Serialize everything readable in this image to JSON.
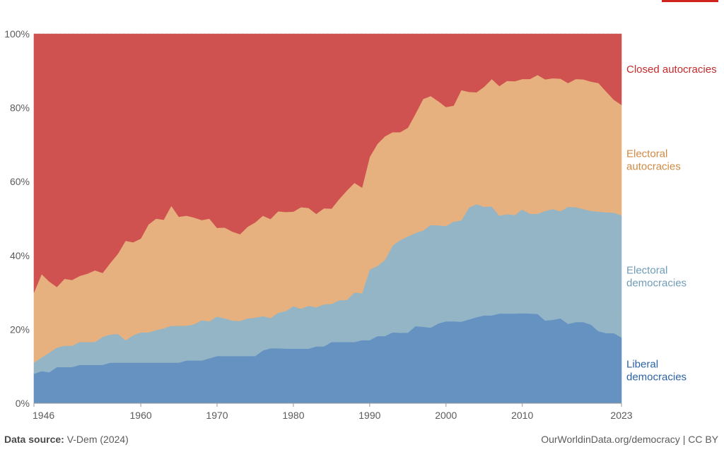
{
  "chart_data": {
    "type": "area",
    "stacked": true,
    "normalized": true,
    "x": [
      1946,
      1947,
      1948,
      1949,
      1950,
      1951,
      1952,
      1953,
      1954,
      1955,
      1956,
      1957,
      1958,
      1959,
      1960,
      1961,
      1962,
      1963,
      1964,
      1965,
      1966,
      1967,
      1968,
      1969,
      1970,
      1971,
      1972,
      1973,
      1974,
      1975,
      1976,
      1977,
      1978,
      1979,
      1980,
      1981,
      1982,
      1983,
      1984,
      1985,
      1986,
      1987,
      1988,
      1989,
      1990,
      1991,
      1992,
      1993,
      1994,
      1995,
      1996,
      1997,
      1998,
      1999,
      2000,
      2001,
      2002,
      2003,
      2004,
      2005,
      2006,
      2007,
      2008,
      2009,
      2010,
      2011,
      2012,
      2013,
      2014,
      2015,
      2016,
      2017,
      2018,
      2019,
      2020,
      2021,
      2022,
      2023
    ],
    "series": [
      {
        "name": "Liberal democracies",
        "color": "#6592c1",
        "values": [
          8,
          8.7,
          8.4,
          9.8,
          9.8,
          9.8,
          10.4,
          10.4,
          10.4,
          10.4,
          11,
          11,
          11,
          11,
          11,
          11,
          11,
          11,
          11,
          11,
          11.6,
          11.6,
          11.6,
          12.2,
          12.8,
          12.8,
          12.8,
          12.8,
          12.8,
          12.8,
          14.3,
          14.9,
          14.9,
          14.8,
          14.8,
          14.8,
          14.8,
          15.4,
          15.4,
          16.6,
          16.6,
          16.6,
          16.6,
          17.1,
          17.1,
          18.2,
          18.2,
          19.2,
          19.1,
          19.1,
          20.9,
          20.7,
          20.5,
          21.6,
          22.2,
          22.2,
          22.1,
          22.7,
          23.3,
          23.8,
          23.8,
          24.3,
          24.3,
          24.3,
          24.4,
          24.3,
          24.2,
          22.4,
          22.6,
          23,
          21.5,
          22,
          22,
          21.3,
          19.5,
          19,
          19,
          17.8
        ]
      },
      {
        "name": "Electoral democracies",
        "color": "#93b5c6",
        "values": [
          3,
          3.7,
          5.3,
          5.3,
          5.8,
          5.8,
          6.2,
          6.2,
          6.2,
          7.6,
          7.6,
          7.8,
          6.1,
          7.4,
          8.2,
          8.2,
          8.8,
          9.3,
          10,
          10,
          9.4,
          9.8,
          10.9,
          10,
          10.7,
          10.2,
          9.6,
          9.5,
          10.2,
          10.4,
          9.3,
          8.2,
          9.6,
          10.2,
          11.5,
          10.8,
          11.6,
          10.6,
          11.4,
          10.3,
          11.3,
          11.4,
          13.4,
          12.7,
          19.1,
          19,
          20.6,
          23.5,
          25.1,
          26.1,
          25.2,
          26.1,
          27.8,
          26.6,
          25.8,
          27,
          27.4,
          30.3,
          30.6,
          29.4,
          29.5,
          26.5,
          26.9,
          26.7,
          28.1,
          27,
          27.1,
          29.7,
          30,
          29,
          31.7,
          31.1,
          30.6,
          30.8,
          32.4,
          32.7,
          32.6,
          33.1
        ]
      },
      {
        "name": "Electoral autocracies",
        "color": "#e6b17e",
        "values": [
          19,
          22.6,
          19.3,
          16.4,
          18.1,
          17.8,
          17.9,
          18.5,
          19.4,
          17.3,
          19.4,
          21.7,
          26.9,
          25.2,
          25.4,
          29.2,
          30.2,
          29.4,
          32.5,
          29.5,
          29.8,
          28.9,
          27.1,
          27.8,
          24,
          24.6,
          24.1,
          23.5,
          24.8,
          25.8,
          27.2,
          26.8,
          27.5,
          26.8,
          25.6,
          27.5,
          26.5,
          25.3,
          26,
          25.8,
          27.4,
          29.6,
          29.7,
          28.6,
          30.5,
          33,
          33.5,
          30.7,
          29.2,
          29.4,
          32.3,
          35.6,
          34.9,
          33.6,
          32.2,
          31.4,
          35.3,
          31.3,
          30.3,
          32.5,
          34.5,
          35.1,
          36.1,
          36.2,
          35.3,
          36.5,
          37.6,
          35.6,
          35.4,
          35.9,
          33.5,
          34.7,
          35.1,
          35,
          34.8,
          32.7,
          30.6,
          29.9
        ]
      },
      {
        "name": "Closed autocracies",
        "color": "#cf5250",
        "values": [
          70,
          65,
          67,
          68.5,
          66.3,
          66.6,
          65.5,
          64.9,
          64,
          64.7,
          62,
          59.5,
          56,
          56.4,
          55.4,
          51.6,
          50,
          50.3,
          46.5,
          49.5,
          49.2,
          49.7,
          50.4,
          50,
          52.5,
          52.4,
          53.5,
          54.2,
          52.2,
          51,
          49.2,
          50.1,
          48,
          48.2,
          48.1,
          46.9,
          47.1,
          48.7,
          47.2,
          47.3,
          44.7,
          42.4,
          40.3,
          41.6,
          33.3,
          29.8,
          27.7,
          26.6,
          26.6,
          25.4,
          21.6,
          17.6,
          16.8,
          18.2,
          19.8,
          19.4,
          15.2,
          15.7,
          15.8,
          14.3,
          12.2,
          14.1,
          12.7,
          12.8,
          12.2,
          12.2,
          11.1,
          12.3,
          12,
          12.1,
          13.3,
          12.2,
          12.3,
          12.9,
          13.3,
          15.6,
          17.8,
          19.2
        ]
      }
    ],
    "xticks": [
      "1946",
      "1960",
      "1970",
      "1980",
      "1990",
      "2000",
      "2010",
      "2023"
    ],
    "yticks": [
      "0%",
      "20%",
      "40%",
      "60%",
      "80%",
      "100%"
    ],
    "ylim": [
      0,
      100
    ],
    "xlim": [
      1946,
      2023
    ],
    "series_labels": [
      {
        "series": "Closed autocracies",
        "lines": [
          "Closed autocracies"
        ]
      },
      {
        "series": "Electoral autocracies",
        "lines": [
          "Electoral",
          "autocracies"
        ]
      },
      {
        "series": "Electoral democracies",
        "lines": [
          "Electoral",
          "democracies"
        ]
      },
      {
        "series": "Liberal democracies",
        "lines": [
          "Liberal",
          "democracies"
        ]
      }
    ],
    "label_colors": {
      "Closed autocracies": "#c42b2b",
      "Electoral autocracies": "#d08a44",
      "Electoral democracies": "#6f9cb8",
      "Liberal democracies": "#2c63a5"
    }
  },
  "footer": {
    "source_label": "Data source:",
    "source_value": "V-Dem (2024)",
    "attribution": "OurWorldinData.org/democracy",
    "license": "| CC BY"
  }
}
